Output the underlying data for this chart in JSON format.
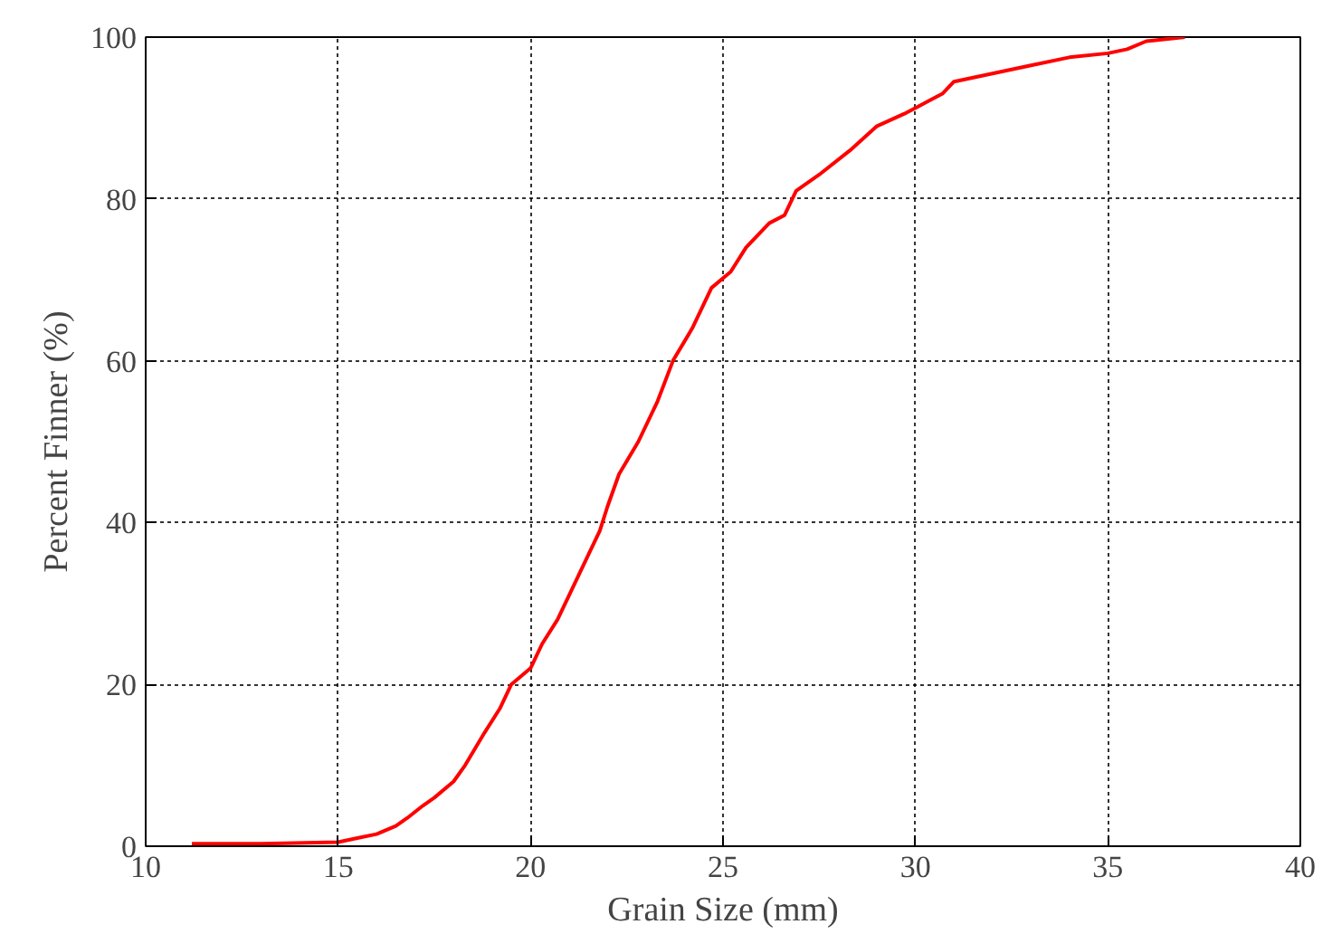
{
  "chart_data": {
    "type": "line",
    "xlabel": "Grain Size (mm)",
    "ylabel": "Percent Finner (%)",
    "xlim": [
      10,
      40
    ],
    "xticks": [
      10,
      15,
      20,
      25,
      30,
      35,
      40
    ],
    "ylim": [
      0,
      100
    ],
    "yticks": [
      0,
      20,
      40,
      60,
      80,
      100
    ],
    "grid": true,
    "line_style": "solid",
    "series": [
      {
        "color": "#ff0000",
        "x": [
          11.2,
          13,
          15,
          15.5,
          16,
          16.5,
          16.8,
          17.2,
          17.5,
          18,
          18.3,
          18.8,
          19.2,
          19.5,
          20,
          20.3,
          20.7,
          21,
          21.5,
          21.8,
          22,
          22.3,
          22.8,
          23.3,
          23.7,
          24.2,
          24.7,
          25.2,
          25.6,
          26.2,
          26.6,
          26.9,
          27.5,
          28.3,
          29,
          29.7,
          30.3,
          30.7,
          31,
          32,
          33,
          34,
          35,
          35.5,
          36,
          37
        ],
        "values": [
          0.3,
          0.3,
          0.5,
          1,
          1.5,
          2.5,
          3.5,
          5,
          6,
          8,
          10,
          14,
          17,
          20,
          22,
          25,
          28,
          31,
          36,
          39,
          42,
          46,
          50,
          55,
          60,
          64,
          69,
          71,
          74,
          77,
          78,
          81,
          83,
          86,
          89,
          90.5,
          92,
          93,
          94.5,
          95.5,
          96.5,
          97.5,
          98,
          98.5,
          99.5,
          100
        ]
      }
    ]
  }
}
